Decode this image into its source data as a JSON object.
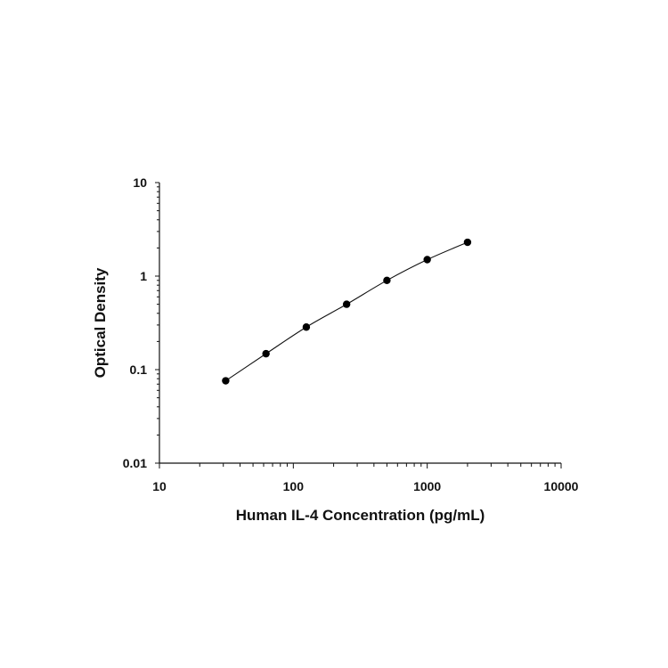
{
  "chart_data": {
    "type": "scatter",
    "xlabel": "Human IL-4 Concentration (pg/mL)",
    "ylabel": "Optical Density",
    "x_scale": "log",
    "y_scale": "log",
    "xlim": [
      10,
      10000
    ],
    "ylim": [
      0.01,
      10
    ],
    "x_ticks": [
      "10",
      "100",
      "1000",
      "10000"
    ],
    "y_ticks": [
      "0.01",
      "0.1",
      "1",
      "10"
    ],
    "grid": false,
    "legend": "none",
    "series": [
      {
        "x": [
          31.25,
          62.5,
          125,
          250,
          500,
          1000,
          2000
        ],
        "y": [
          0.076,
          0.148,
          0.285,
          0.5,
          0.9,
          1.5,
          2.3
        ],
        "marker": "circle",
        "fit_line": true
      }
    ],
    "colors": {
      "points": "#000000",
      "line": "#111111"
    }
  }
}
